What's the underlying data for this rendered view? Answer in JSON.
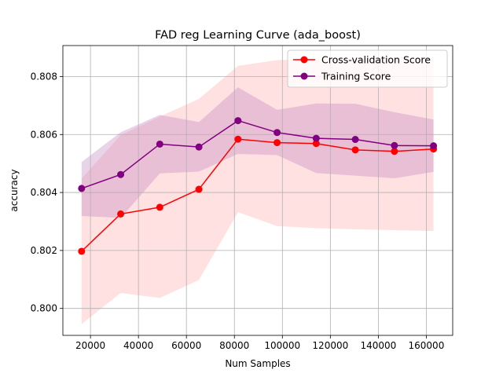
{
  "chart_data": {
    "type": "line",
    "title": "FAD reg Learning Curve (ada_boost)",
    "xlabel": "Num Samples",
    "ylabel": "accuracy",
    "xlim": [
      8500,
      171000
    ],
    "ylim": [
      0.79907,
      0.80907
    ],
    "x_ticks": [
      20000,
      40000,
      60000,
      80000,
      100000,
      120000,
      140000,
      160000
    ],
    "x_tick_labels": [
      "20000",
      "40000",
      "60000",
      "80000",
      "100000",
      "120000",
      "140000",
      "160000"
    ],
    "y_ticks": [
      0.8,
      0.802,
      0.804,
      0.806,
      0.808
    ],
    "y_tick_labels": [
      "0.800",
      "0.802",
      "0.804",
      "0.806",
      "0.808"
    ],
    "grid": true,
    "legend_position": "top-right",
    "x": [
      16300,
      32600,
      48900,
      65200,
      81500,
      97800,
      114100,
      130400,
      146700,
      163000
    ],
    "series": [
      {
        "name": "Cross-validation Score",
        "color": "#ff0000",
        "band_color": "#ffb3b3",
        "values": [
          0.80197,
          0.80326,
          0.80349,
          0.80411,
          0.80584,
          0.80572,
          0.80569,
          0.80547,
          0.80542,
          0.8055
        ],
        "band_upper": [
          0.80448,
          0.80598,
          0.80662,
          0.80723,
          0.80837,
          0.80857,
          0.8086,
          0.80862,
          0.80864,
          0.80868
        ],
        "band_lower": [
          0.79946,
          0.80053,
          0.80036,
          0.80098,
          0.80332,
          0.80284,
          0.80277,
          0.80273,
          0.8027,
          0.80267
        ]
      },
      {
        "name": "Training Score",
        "color": "#800080",
        "band_color": "#c080c0",
        "values": [
          0.80414,
          0.80462,
          0.80567,
          0.80557,
          0.80648,
          0.80607,
          0.80587,
          0.80583,
          0.80562,
          0.80561
        ],
        "band_upper": [
          0.80505,
          0.80608,
          0.80668,
          0.80643,
          0.80763,
          0.80685,
          0.80707,
          0.80706,
          0.80677,
          0.80652
        ],
        "band_lower": [
          0.80319,
          0.80312,
          0.80466,
          0.80472,
          0.80533,
          0.80529,
          0.80467,
          0.80458,
          0.80449,
          0.80471
        ]
      }
    ]
  }
}
